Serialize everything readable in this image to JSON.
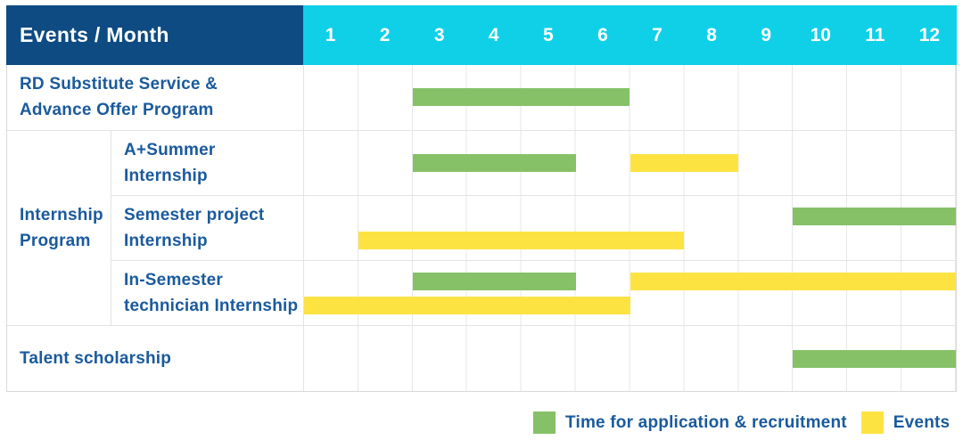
{
  "header": {
    "label": "Events / Month",
    "months": [
      "1",
      "2",
      "3",
      "4",
      "5",
      "6",
      "7",
      "8",
      "9",
      "10",
      "11",
      "12"
    ]
  },
  "colors": {
    "header_bg": "#0e4b82",
    "months_bg": "#10d0e8",
    "label_text": "#1a5a9c",
    "application": "#86c167",
    "event": "#fde342"
  },
  "legend": {
    "items": [
      {
        "key": "application",
        "label": "Time for application & recruitment",
        "color": "#86c167"
      },
      {
        "key": "event",
        "label": "Events",
        "color": "#fde342"
      }
    ]
  },
  "groups": {
    "internship": {
      "label_lines": [
        "Internship",
        "Program"
      ]
    }
  },
  "chart_data": {
    "type": "gantt",
    "unit": "month",
    "x_range": [
      1,
      12
    ],
    "x_ticks": [
      1,
      2,
      3,
      4,
      5,
      6,
      7,
      8,
      9,
      10,
      11,
      12
    ],
    "series_legend": {
      "application": "Time for application & recruitment",
      "event": "Events"
    },
    "rows": [
      {
        "id": "rd-substitute",
        "label_lines": [
          "RD Substitute Service &",
          "Advance Offer Program"
        ],
        "group": null,
        "bars": [
          {
            "kind": "application",
            "from_month": 3,
            "to_month": 6,
            "lane": "mid"
          }
        ]
      },
      {
        "id": "a-plus-summer",
        "label_lines": [
          "A+Summer",
          "Internship"
        ],
        "group": "internship",
        "bars": [
          {
            "kind": "application",
            "from_month": 3,
            "to_month": 5,
            "lane": "mid"
          },
          {
            "kind": "event",
            "from_month": 7,
            "to_month": 8,
            "lane": "mid"
          }
        ]
      },
      {
        "id": "semester-project",
        "label_lines": [
          "Semester project",
          "Internship"
        ],
        "group": "internship",
        "bars": [
          {
            "kind": "application",
            "from_month": 10,
            "to_month": 12,
            "lane": "top"
          },
          {
            "kind": "event",
            "from_month": 2,
            "to_month": 7,
            "lane": "bottom"
          }
        ]
      },
      {
        "id": "in-semester",
        "label_lines": [
          "In-Semester",
          "technician Internship"
        ],
        "group": "internship",
        "bars": [
          {
            "kind": "application",
            "from_month": 3,
            "to_month": 5,
            "lane": "top"
          },
          {
            "kind": "event",
            "from_month": 7,
            "to_month": 12,
            "lane": "top"
          },
          {
            "kind": "event",
            "from_month": 1,
            "to_month": 6,
            "lane": "bottom"
          }
        ]
      },
      {
        "id": "talent-scholarship",
        "label_lines": [
          "Talent scholarship"
        ],
        "group": null,
        "bars": [
          {
            "kind": "application",
            "from_month": 10,
            "to_month": 12,
            "lane": "mid"
          }
        ]
      }
    ]
  }
}
